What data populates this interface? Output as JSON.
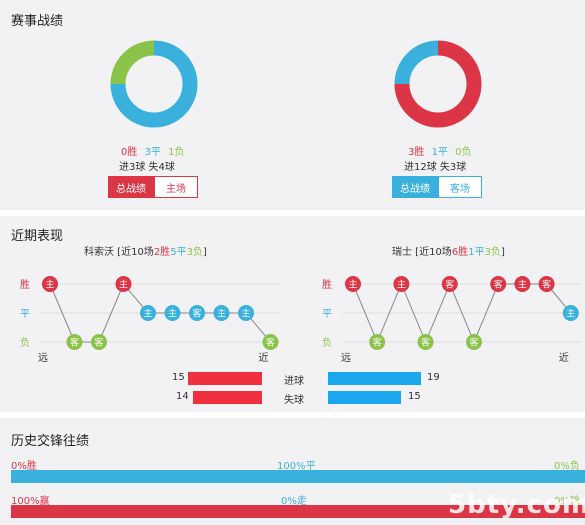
{
  "section1": {
    "title": "赛事战绩",
    "left": {
      "wins": "0胜",
      "draws": "3平",
      "losses": "1负",
      "goals": "进3球 失4球",
      "tab_total": "总战绩",
      "tab_home": "主场",
      "donut": [
        {
          "label": "胜",
          "value": 0,
          "color": "#dc3545"
        },
        {
          "label": "平",
          "value": 3,
          "color": "#3ab0dd"
        },
        {
          "label": "负",
          "value": 1,
          "color": "#8bc34a"
        }
      ]
    },
    "right": {
      "wins": "3胜",
      "draws": "1平",
      "losses": "0负",
      "goals": "进12球 失3球",
      "tab_total": "总战绩",
      "tab_away": "客场",
      "donut": [
        {
          "label": "胜",
          "value": 3,
          "color": "#dc3545"
        },
        {
          "label": "平",
          "value": 1,
          "color": "#3ab0dd"
        },
        {
          "label": "负",
          "value": 0,
          "color": "#8bc34a"
        }
      ]
    }
  },
  "section2": {
    "title": "近期表现",
    "left": {
      "team": "科索沃",
      "summary_pre": " [近10场",
      "w": "2胜",
      "d": "5平",
      "l": "3负",
      "summary_post": "]",
      "results": [
        "W",
        "L",
        "L",
        "W",
        "D",
        "D",
        "D",
        "D",
        "D",
        "L"
      ],
      "venues": [
        "主",
        "客",
        "客",
        "主",
        "主",
        "主",
        "客",
        "主",
        "主",
        "客"
      ],
      "far": "远",
      "near": "近"
    },
    "right": {
      "team": "瑞士",
      "summary_pre": " [近10场",
      "w": "6胜",
      "d": "1平",
      "l": "3负",
      "summary_post": "]",
      "results": [
        "W",
        "L",
        "W",
        "L",
        "W",
        "L",
        "W",
        "W",
        "W",
        "D"
      ],
      "venues": [
        "主",
        "客",
        "主",
        "客",
        "客",
        "客",
        "客",
        "主",
        "客",
        "主"
      ],
      "far": "远",
      "near": "近"
    },
    "row_labels": {
      "win": "胜",
      "draw": "平",
      "loss": "负"
    },
    "stats": {
      "goals_label": "进球",
      "conceded_label": "失球",
      "left_goals": 15,
      "right_goals": 19,
      "left_conceded": 14,
      "right_conceded": 15
    },
    "colors": {
      "win": "#dc3545",
      "draw": "#3ab0dd",
      "loss": "#8bc34a",
      "bar_left": "#f0303f",
      "bar_right": "#1aa7ee"
    }
  },
  "section3": {
    "title": "历史交锋往绩",
    "row1": {
      "left": "0%胜",
      "mid": "100%平",
      "right": "0%负",
      "fraction": 1.0
    },
    "row2": {
      "left": "100%赢",
      "mid": "0%走",
      "right": "0%输",
      "fraction": 1.0
    }
  },
  "watermark": "5bty.com"
}
